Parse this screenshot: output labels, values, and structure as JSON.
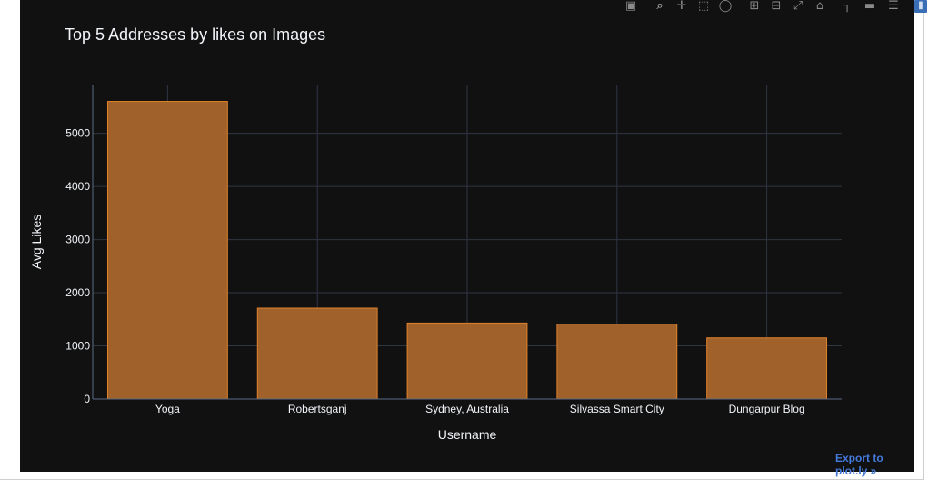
{
  "modebar": {
    "icons": [
      "camera-icon",
      "zoom-icon",
      "pan-icon",
      "box-select-icon",
      "lasso-select-icon",
      "zoom-in-icon",
      "zoom-out-icon",
      "autoscale-icon",
      "reset-axes-icon",
      "spike-lines-icon",
      "hover-closest-icon",
      "hover-compare-icon",
      "plotly-logo-icon"
    ]
  },
  "export_link": "Export to plot.ly »",
  "chart_data": {
    "type": "bar",
    "title": "Top 5 Addresses by likes on Images",
    "xlabel": "Username",
    "ylabel": "Avg Likes",
    "categories": [
      "Yoga",
      "Robertsganj",
      "Sydney, Australia",
      "Silvassa Smart City",
      "Dungarpur Blog"
    ],
    "values": [
      5600,
      1710,
      1430,
      1410,
      1150
    ],
    "ylim": [
      0,
      5900
    ],
    "yticks": [
      0,
      1000,
      2000,
      3000,
      4000,
      5000
    ],
    "grid": true,
    "colors": {
      "background": "#111111",
      "bar_fill": "#a0622a",
      "bar_edge": "#e0822a",
      "grid": "#2f3543",
      "axis_line": "#5b6a85",
      "text": "#f2f5fa",
      "tick_text": "#f2f5fa"
    }
  }
}
